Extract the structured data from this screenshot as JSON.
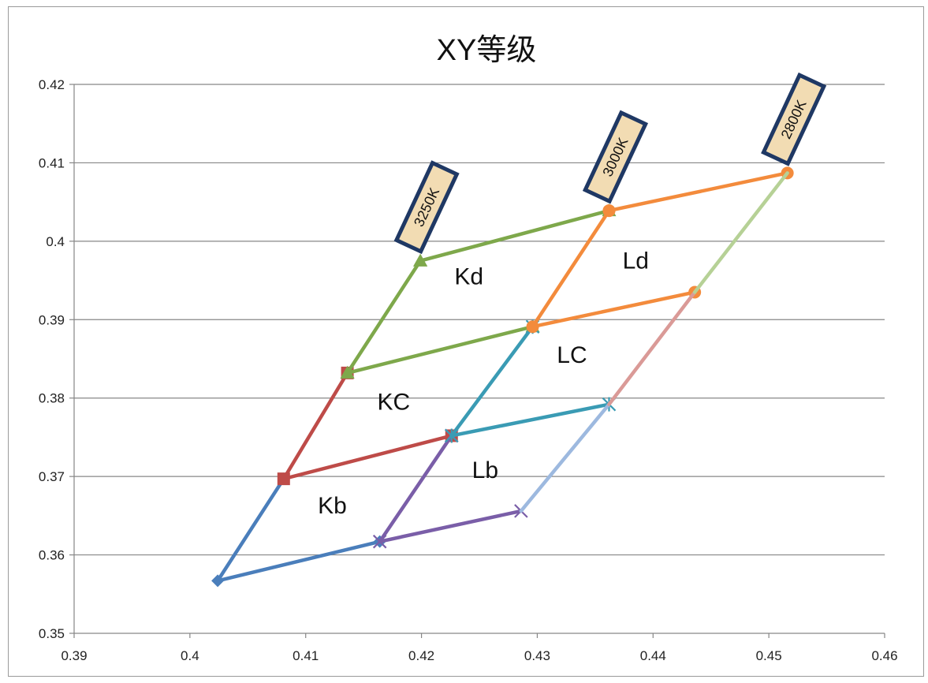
{
  "chart_data": {
    "type": "line",
    "title": "XY等级",
    "xlabel": "",
    "ylabel": "",
    "xlim": [
      0.39,
      0.46
    ],
    "ylim": [
      0.35,
      0.42
    ],
    "x_ticks": [
      "0.39",
      "0.4",
      "0.41",
      "0.42",
      "0.43",
      "0.44",
      "0.45",
      "0.46"
    ],
    "y_ticks": [
      "0.35",
      "0.36",
      "0.37",
      "0.38",
      "0.39",
      "0.4",
      "0.41",
      "0.42"
    ],
    "grid": "horizontal",
    "legend": "none",
    "series": [
      {
        "color": "#4a7ebb",
        "marker": "diamond",
        "points": [
          [
            0.4081,
            0.3697
          ],
          [
            0.4024,
            0.3567
          ],
          [
            0.4164,
            0.3617
          ]
        ]
      },
      {
        "color": "#be4b48",
        "marker": "square",
        "points": [
          [
            0.4136,
            0.3832
          ],
          [
            0.4081,
            0.3697
          ],
          [
            0.4226,
            0.3752
          ]
        ]
      },
      {
        "color": "#7ea84b",
        "marker": "triangle",
        "points": [
          [
            0.4199,
            0.3975
          ],
          [
            0.4136,
            0.3832
          ],
          [
            0.4296,
            0.3891
          ],
          [
            0.4136,
            0.3832
          ]
        ]
      },
      {
        "color": "#7ea84b",
        "marker": "triangle",
        "points": [
          [
            0.4199,
            0.3975
          ],
          [
            0.4362,
            0.4039
          ]
        ]
      },
      {
        "color": "#7a5ea8",
        "marker": "x",
        "points": [
          [
            0.4226,
            0.3752
          ],
          [
            0.4164,
            0.3617
          ],
          [
            0.4286,
            0.3656
          ]
        ]
      },
      {
        "color": "#3a9bb4",
        "marker": "star",
        "points": [
          [
            0.4296,
            0.3891
          ],
          [
            0.4226,
            0.3752
          ],
          [
            0.4362,
            0.3792
          ]
        ]
      },
      {
        "color": "#f38b3c",
        "marker": "circle",
        "points": [
          [
            0.4362,
            0.4039
          ],
          [
            0.4296,
            0.3891
          ],
          [
            0.4436,
            0.3935
          ]
        ]
      },
      {
        "color": "#f38b3c",
        "marker": "circle",
        "points": [
          [
            0.4362,
            0.4039
          ],
          [
            0.4516,
            0.4087
          ]
        ]
      },
      {
        "color": "#9db9df",
        "marker": "none",
        "points": [
          [
            0.4286,
            0.3656
          ],
          [
            0.4362,
            0.3792
          ]
        ]
      },
      {
        "color": "#da9a97",
        "marker": "none",
        "points": [
          [
            0.4362,
            0.3792
          ],
          [
            0.4436,
            0.3935
          ]
        ]
      },
      {
        "color": "#b6d196",
        "marker": "none",
        "points": [
          [
            0.4436,
            0.3935
          ],
          [
            0.4516,
            0.4087
          ]
        ]
      }
    ],
    "region_labels": [
      {
        "text": "Kd",
        "x": 0.4241,
        "y": 0.3945
      },
      {
        "text": "Ld",
        "x": 0.4385,
        "y": 0.3965
      },
      {
        "text": "LC",
        "x": 0.433,
        "y": 0.3845
      },
      {
        "text": "KC",
        "x": 0.4176,
        "y": 0.3785
      },
      {
        "text": "Lb",
        "x": 0.4255,
        "y": 0.3698
      },
      {
        "text": "Kb",
        "x": 0.4123,
        "y": 0.3653
      }
    ],
    "cct_labels": [
      {
        "text": "3250K",
        "x": 0.4199,
        "y": 0.3975
      },
      {
        "text": "3000K",
        "x": 0.4362,
        "y": 0.4039
      },
      {
        "text": "2800K",
        "x": 0.4516,
        "y": 0.4087
      }
    ]
  }
}
